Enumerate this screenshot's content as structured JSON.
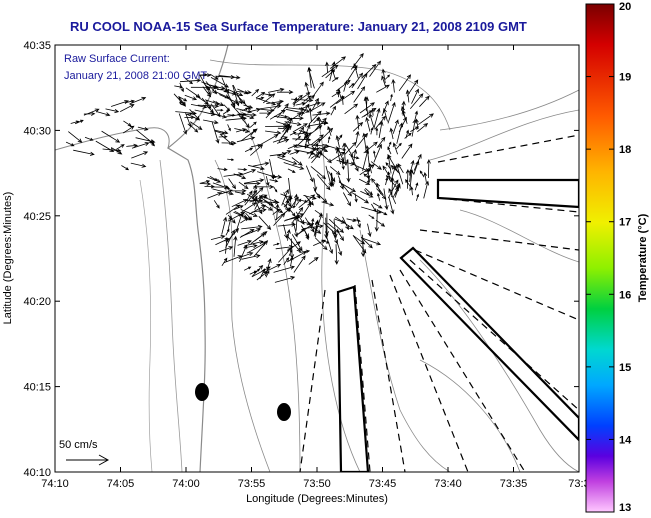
{
  "chart_data": {
    "type": "vector-field",
    "title": "RU COOL  NOAA-15  Sea Surface Temperature:  January 21, 2008 2109 GMT",
    "annotation_lines": [
      "Raw Surface Current:",
      "January 21, 2008 21:00 GMT"
    ],
    "xlabel": "Longitude (Degrees:Minutes)",
    "ylabel": "Latitude (Degrees:Minutes)",
    "x_ticks": [
      "74:10",
      "74:05",
      "74:00",
      "73:55",
      "73:50",
      "73:45",
      "73:40",
      "73:35",
      "73:3"
    ],
    "y_ticks": [
      "40:35",
      "40:30",
      "40:25",
      "40:20",
      "40:15",
      "40:10"
    ],
    "xlim_minutes_west": [
      10,
      30
    ],
    "ylim_minutes_north": [
      10,
      35
    ],
    "scale_label": "50 cm/s",
    "colorbar": {
      "label": "Temperature (°C)",
      "ticks": [
        "20",
        "19",
        "18",
        "17",
        "16",
        "15",
        "14",
        "13"
      ],
      "range": [
        13,
        20
      ]
    },
    "colors": {
      "title": "#1a1a9c",
      "annotation": "#1a1a9c",
      "vectors": "#000000",
      "contours": "#8a8a8a"
    }
  }
}
